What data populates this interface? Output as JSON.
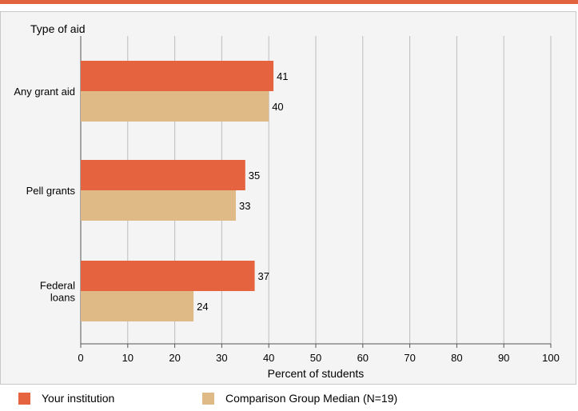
{
  "colors": {
    "top_rule": "#e0623f",
    "your_institution": "#e5643f",
    "comparison": "#dfba87",
    "grid": "#bdbdbd",
    "axis": "#555555"
  },
  "chart_data": {
    "type": "bar",
    "orientation": "horizontal",
    "title": "Type of aid",
    "xlabel": "Percent of students",
    "xlim": [
      0,
      100
    ],
    "xticks": [
      0,
      10,
      20,
      30,
      40,
      50,
      60,
      70,
      80,
      90,
      100
    ],
    "grid": true,
    "legend_position": "bottom",
    "categories": [
      [
        "Any grant aid"
      ],
      [
        "Pell grants"
      ],
      [
        "Federal",
        "loans"
      ]
    ],
    "series": [
      {
        "name": "Your institution",
        "values": [
          41,
          35,
          37
        ]
      },
      {
        "name": "Comparison Group Median (N=19)",
        "values": [
          40,
          33,
          24
        ]
      }
    ]
  }
}
